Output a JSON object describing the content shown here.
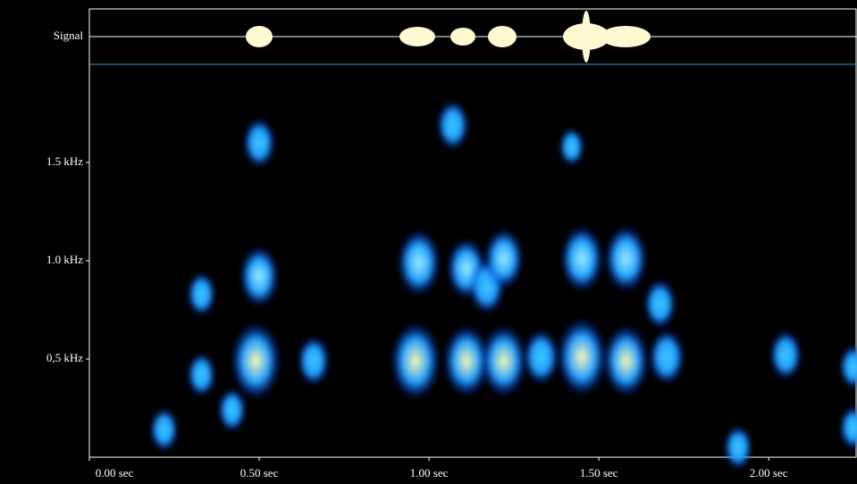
{
  "chart_data": {
    "type": "spectrogram",
    "signal_label": "Signal",
    "xlim": [
      0,
      2.26
    ],
    "ylim": [
      0,
      2
    ],
    "xticks": [
      {
        "value": 0,
        "label": "0.00 sec"
      },
      {
        "value": 0.5,
        "label": "0.50 sec"
      },
      {
        "value": 1,
        "label": "1.00 sec"
      },
      {
        "value": 1.5,
        "label": "1.50 sec"
      },
      {
        "value": 2,
        "label": "2.00 sec"
      }
    ],
    "yticks": [
      {
        "value": 0.5,
        "label": "0,5 kHz"
      },
      {
        "value": 1,
        "label": "1.0 kHz"
      },
      {
        "value": 1.5,
        "label": "1.5 kHz"
      }
    ],
    "spots": {
      "x": [
        0.5,
        0.5,
        0.49,
        0.33,
        0.33,
        0.42,
        0.22,
        0.66,
        1.07,
        0.97,
        0.96,
        1.11,
        1.11,
        1.17,
        1.22,
        1.22,
        1.33,
        1.45,
        1.45,
        1.58,
        1.58,
        1.68,
        1.7,
        1.42,
        2.05,
        2.25,
        1.91,
        2.25
      ],
      "y": [
        1.6,
        0.92,
        0.49,
        0.83,
        0.42,
        0.24,
        0.14,
        0.49,
        1.69,
        0.99,
        0.49,
        0.96,
        0.49,
        0.87,
        1.01,
        0.49,
        0.51,
        1.01,
        0.51,
        1.01,
        0.49,
        0.78,
        0.51,
        1.58,
        0.52,
        0.46,
        0.05,
        0.15
      ],
      "intensity": [
        0.5,
        0.7,
        1.0,
        0.4,
        0.4,
        0.4,
        0.4,
        0.5,
        0.5,
        0.8,
        1.0,
        0.7,
        0.9,
        0.6,
        0.7,
        0.9,
        0.6,
        0.8,
        1.0,
        0.8,
        0.9,
        0.5,
        0.6,
        0.3,
        0.5,
        0.4,
        0.4,
        0.4
      ]
    }
  }
}
